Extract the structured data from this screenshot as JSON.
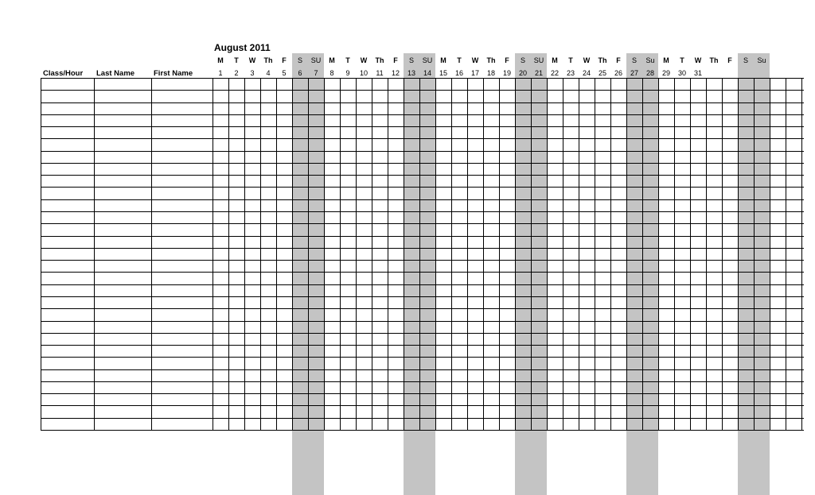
{
  "sheet": {
    "title": "August 2011",
    "headers": [
      "Class/Hour",
      "Last Name",
      "First Name"
    ],
    "days": [
      {
        "dow": "M",
        "num": "1",
        "weekend": false
      },
      {
        "dow": "T",
        "num": "2",
        "weekend": false
      },
      {
        "dow": "W",
        "num": "3",
        "weekend": false
      },
      {
        "dow": "Th",
        "num": "4",
        "weekend": false
      },
      {
        "dow": "F",
        "num": "5",
        "weekend": false
      },
      {
        "dow": "S",
        "num": "6",
        "weekend": true
      },
      {
        "dow": "SU",
        "num": "7",
        "weekend": true
      },
      {
        "dow": "M",
        "num": "8",
        "weekend": false
      },
      {
        "dow": "T",
        "num": "9",
        "weekend": false
      },
      {
        "dow": "W",
        "num": "10",
        "weekend": false
      },
      {
        "dow": "Th",
        "num": "11",
        "weekend": false
      },
      {
        "dow": "F",
        "num": "12",
        "weekend": false
      },
      {
        "dow": "S",
        "num": "13",
        "weekend": true
      },
      {
        "dow": "SU",
        "num": "14",
        "weekend": true
      },
      {
        "dow": "M",
        "num": "15",
        "weekend": false
      },
      {
        "dow": "T",
        "num": "16",
        "weekend": false
      },
      {
        "dow": "W",
        "num": "17",
        "weekend": false
      },
      {
        "dow": "Th",
        "num": "18",
        "weekend": false
      },
      {
        "dow": "F",
        "num": "19",
        "weekend": false
      },
      {
        "dow": "S",
        "num": "20",
        "weekend": true
      },
      {
        "dow": "SU",
        "num": "21",
        "weekend": true
      },
      {
        "dow": "M",
        "num": "22",
        "weekend": false
      },
      {
        "dow": "T",
        "num": "23",
        "weekend": false
      },
      {
        "dow": "W",
        "num": "24",
        "weekend": false
      },
      {
        "dow": "Th",
        "num": "25",
        "weekend": false
      },
      {
        "dow": "F",
        "num": "26",
        "weekend": false
      },
      {
        "dow": "S",
        "num": "27",
        "weekend": true
      },
      {
        "dow": "Su",
        "num": "28",
        "weekend": true
      },
      {
        "dow": "M",
        "num": "29",
        "weekend": false
      },
      {
        "dow": "T",
        "num": "30",
        "weekend": false
      },
      {
        "dow": "W",
        "num": "31",
        "weekend": false
      },
      {
        "dow": "Th",
        "num": "",
        "weekend": false
      },
      {
        "dow": "F",
        "num": "",
        "weekend": false
      },
      {
        "dow": "S",
        "num": "",
        "weekend": true
      },
      {
        "dow": "Su",
        "num": "",
        "weekend": true
      },
      {
        "dow": "",
        "num": "",
        "weekend": false
      },
      {
        "dow": "",
        "num": "",
        "weekend": false
      }
    ],
    "colors": {
      "weekend_shade": "#c4c4c4",
      "grid": "#000000"
    }
  }
}
